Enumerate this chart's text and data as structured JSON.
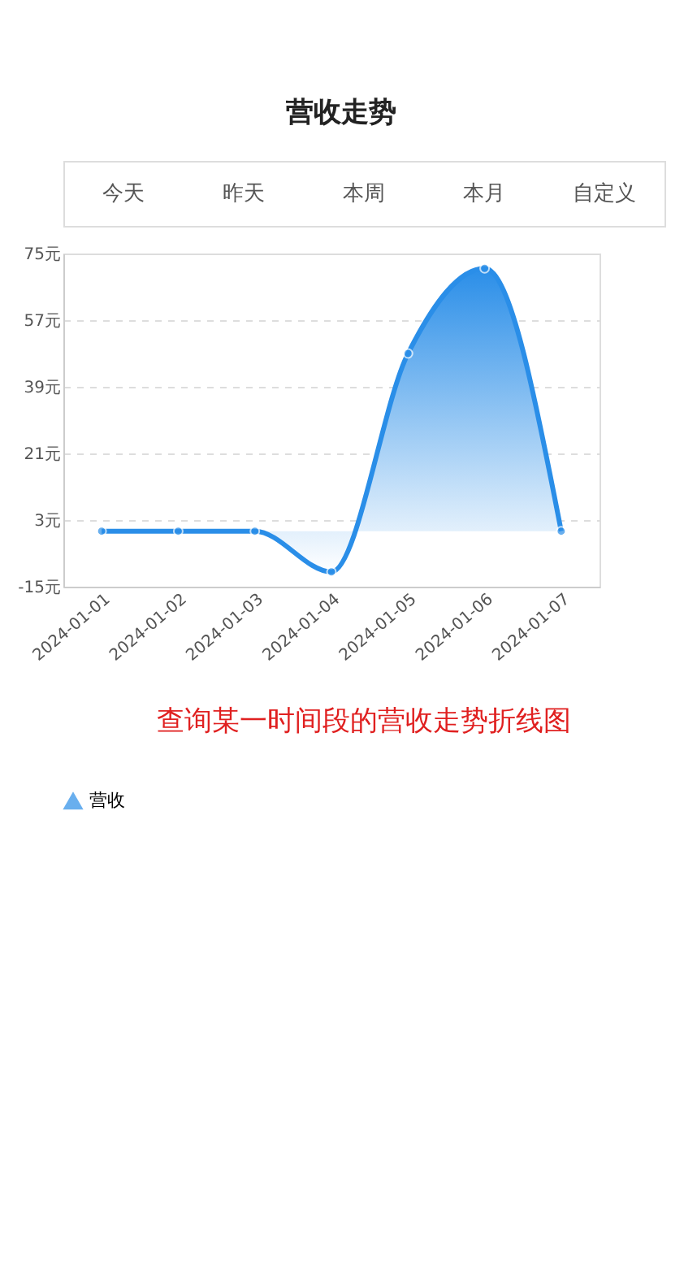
{
  "chart_data": {
    "type": "area",
    "title": "营收走势",
    "annotations": [
      "今天",
      "昨天",
      "本周",
      "本月",
      "自定义",
      "查询某一时间段的营收走势折线图"
    ],
    "categories": [
      "2024-01-01",
      "2024-01-02",
      "2024-01-03",
      "2024-01-04",
      "2024-01-05",
      "2024-01-06",
      "2024-01-07"
    ],
    "series": [
      {
        "name": "营收",
        "color": "#2a8ee8",
        "values": [
          0,
          0,
          0,
          -11,
          48,
          71,
          0
        ]
      }
    ],
    "ylim": [
      -15,
      75
    ],
    "yticks": [
      {
        "value": -15,
        "label": "-15元"
      },
      {
        "value": 3,
        "label": "3元"
      },
      {
        "value": 21,
        "label": "21元"
      },
      {
        "value": 39,
        "label": "39元"
      },
      {
        "value": 57,
        "label": "57元"
      },
      {
        "value": 75,
        "label": "75元"
      }
    ],
    "grid": "y",
    "legend": "bottom",
    "marker": "circle"
  }
}
